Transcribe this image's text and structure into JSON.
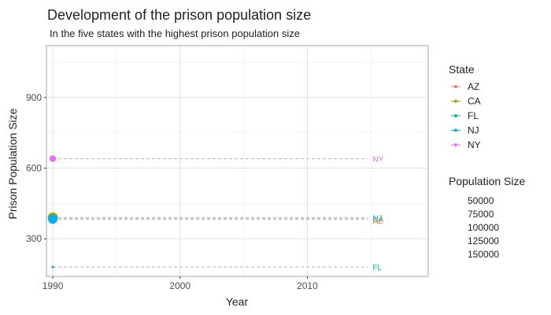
{
  "chart_data": {
    "type": "scatter",
    "title": "Development of the prison population size",
    "subtitle": "In the five states with the highest prison population size",
    "xlabel": "Year",
    "ylabel": "Prison Population Size",
    "xlim": [
      1989.5,
      2019.5
    ],
    "ylim": [
      140,
      1120
    ],
    "x_ticks": [
      1990,
      2000,
      2010
    ],
    "y_ticks": [
      300,
      600,
      900
    ],
    "grid": true,
    "legend_position": "right",
    "series_legend_title": "State",
    "size_legend_title": "Population Size",
    "size_legend_values": [
      "50000",
      "75000",
      "100000",
      "125000",
      "150000"
    ],
    "series": [
      {
        "name": "AZ",
        "color": "#F8766D",
        "x": [
          1990
        ],
        "y": [
          385
        ],
        "size": [
          60000
        ],
        "end_x": 2015.5
      },
      {
        "name": "CA",
        "color": "#A3A500",
        "x": [
          1990
        ],
        "y": [
          390
        ],
        "size": [
          97000
        ],
        "end_x": 2015.5
      },
      {
        "name": "FL",
        "color": "#00BF7D",
        "x": [
          1990
        ],
        "y": [
          180
        ],
        "size": [
          5000
        ],
        "end_x": 2015.5
      },
      {
        "name": "NJ",
        "color": "#00B0F6",
        "x": [
          1990
        ],
        "y": [
          383
        ],
        "size": [
          80000
        ],
        "end_x": 2015.5
      },
      {
        "name": "NY",
        "color": "#E76BF3",
        "x": [
          1990
        ],
        "y": [
          640
        ],
        "size": [
          40000
        ],
        "end_x": 2015.5
      }
    ]
  }
}
